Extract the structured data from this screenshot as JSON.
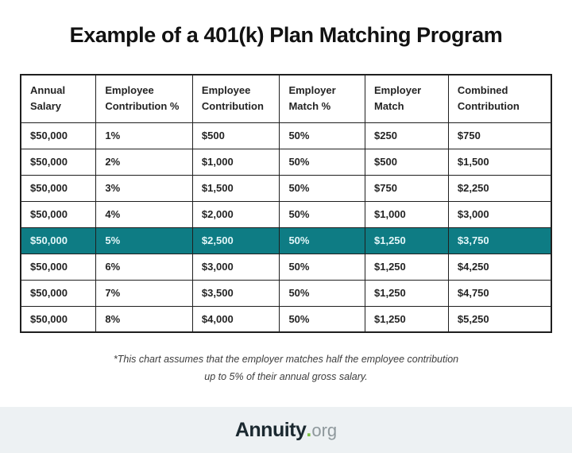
{
  "title": "Example of a 401(k) Plan Matching Program",
  "chart_data": {
    "type": "table",
    "title": "Example of a 401(k) Plan Matching Program",
    "columns": [
      "Annual Salary",
      "Employee Contribution %",
      "Employee Contribution",
      "Employer Match %",
      "Employer Match",
      "Combined Contribution"
    ],
    "rows": [
      [
        "$50,000",
        "1%",
        "$500",
        "50%",
        "$250",
        "$750"
      ],
      [
        "$50,000",
        "2%",
        "$1,000",
        "50%",
        "$500",
        "$1,500"
      ],
      [
        "$50,000",
        "3%",
        "$1,500",
        "50%",
        "$750",
        "$2,250"
      ],
      [
        "$50,000",
        "4%",
        "$2,000",
        "50%",
        "$1,000",
        "$3,000"
      ],
      [
        "$50,000",
        "5%",
        "$2,500",
        "50%",
        "$1,250",
        "$3,750"
      ],
      [
        "$50,000",
        "6%",
        "$3,000",
        "50%",
        "$1,250",
        "$4,250"
      ],
      [
        "$50,000",
        "7%",
        "$3,500",
        "50%",
        "$1,250",
        "$4,750"
      ],
      [
        "$50,000",
        "8%",
        "$4,000",
        "50%",
        "$1,250",
        "$5,250"
      ]
    ],
    "highlighted_row_index": 4
  },
  "table": {
    "columns": [
      {
        "line1": "Annual",
        "line2": "Salary"
      },
      {
        "line1": "Employee",
        "line2": "Contribution %"
      },
      {
        "line1": "Employee",
        "line2": "Contribution"
      },
      {
        "line1": "Employer",
        "line2": "Match %"
      },
      {
        "line1": "Employer",
        "line2": "Match"
      },
      {
        "line1": "Combined",
        "line2": "Contribution"
      }
    ],
    "rows": [
      [
        "$50,000",
        "1%",
        "$500",
        "50%",
        "$250",
        "$750"
      ],
      [
        "$50,000",
        "2%",
        "$1,000",
        "50%",
        "$500",
        "$1,500"
      ],
      [
        "$50,000",
        "3%",
        "$1,500",
        "50%",
        "$750",
        "$2,250"
      ],
      [
        "$50,000",
        "4%",
        "$2,000",
        "50%",
        "$1,000",
        "$3,000"
      ],
      [
        "$50,000",
        "5%",
        "$2,500",
        "50%",
        "$1,250",
        "$3,750"
      ],
      [
        "$50,000",
        "6%",
        "$3,000",
        "50%",
        "$1,250",
        "$4,250"
      ],
      [
        "$50,000",
        "7%",
        "$3,500",
        "50%",
        "$1,250",
        "$4,750"
      ],
      [
        "$50,000",
        "8%",
        "$4,000",
        "50%",
        "$1,250",
        "$5,250"
      ]
    ],
    "highlighted_row_index": 4
  },
  "footnote": {
    "line1": "*This chart assumes that the employer matches half the employee contribution",
    "line2": "up to 5% of their annual gross salary."
  },
  "footer": {
    "brand": "Annuity",
    "dot": ".",
    "tld": "org"
  },
  "colors": {
    "highlight_teal": "#0E7C84",
    "highlight_text": "#E3F6F8",
    "table_border": "#1F1F1F",
    "footer_bg": "#EDF1F3",
    "dot_green": "#7BC143",
    "tld_gray": "#8E989C",
    "title_text": "#121212"
  }
}
